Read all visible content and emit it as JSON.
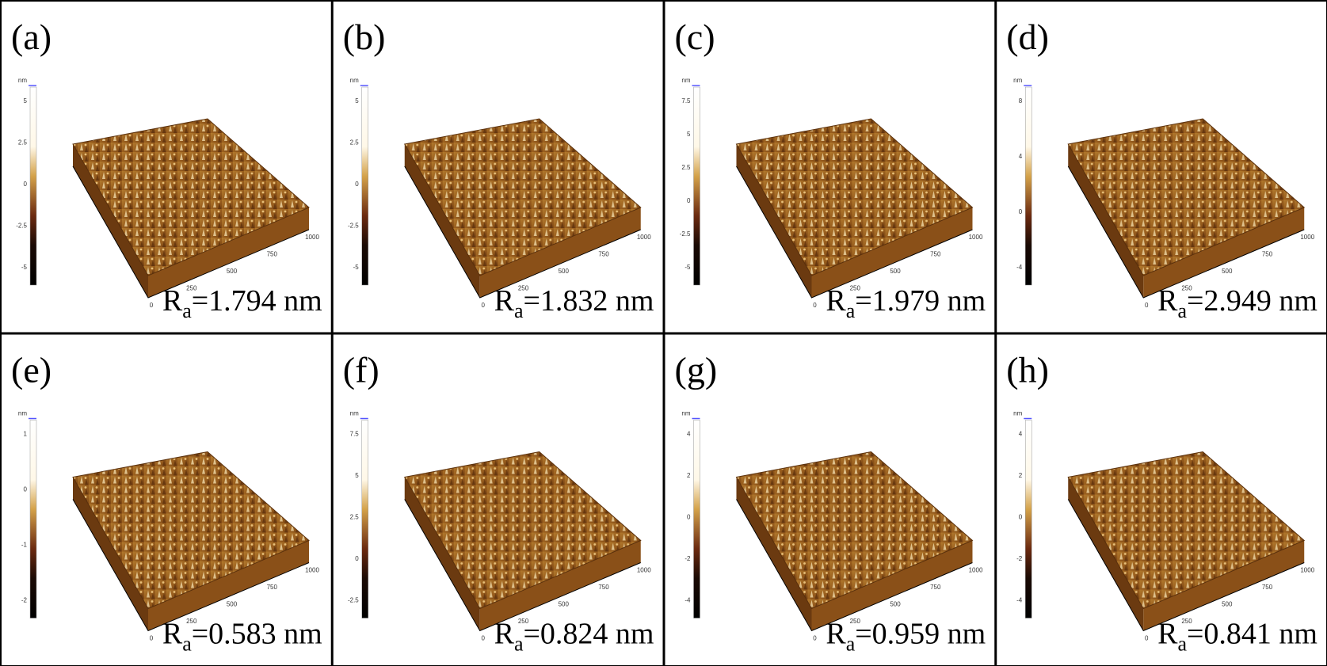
{
  "panels": [
    {
      "label": "(a)",
      "ra": {
        "symbol": "R",
        "sub": "a",
        "text": "=1.794 nm"
      },
      "colorbar": {
        "unit": "nm",
        "ticks": [
          "5",
          "2.5",
          "0",
          "-2.5",
          "-5"
        ]
      },
      "axis_ticks": [
        "0",
        "250",
        "500",
        "750",
        "1000"
      ]
    },
    {
      "label": "(b)",
      "ra": {
        "symbol": "R",
        "sub": "a",
        "text": "=1.832 nm"
      },
      "colorbar": {
        "unit": "nm",
        "ticks": [
          "5",
          "2.5",
          "0",
          "-2.5",
          "-5"
        ]
      },
      "axis_ticks": [
        "0",
        "250",
        "500",
        "750",
        "1000"
      ]
    },
    {
      "label": "(c)",
      "ra": {
        "symbol": "R",
        "sub": "a",
        "text": "=1.979 nm"
      },
      "colorbar": {
        "unit": "nm",
        "ticks": [
          "7.5",
          "5",
          "2.5",
          "0",
          "-2.5",
          "-5"
        ]
      },
      "axis_ticks": [
        "0",
        "250",
        "500",
        "750",
        "1000"
      ]
    },
    {
      "label": "(d)",
      "ra": {
        "symbol": "R",
        "sub": "a",
        "text": "=2.949 nm"
      },
      "colorbar": {
        "unit": "nm",
        "ticks": [
          "8",
          "4",
          "0",
          "-4"
        ]
      },
      "axis_ticks": [
        "0",
        "250",
        "500",
        "750",
        "1000"
      ]
    },
    {
      "label": "(e)",
      "ra": {
        "symbol": "R",
        "sub": "a",
        "text": "=0.583 nm"
      },
      "colorbar": {
        "unit": "nm",
        "ticks": [
          "1",
          "0",
          "-1",
          "-2"
        ]
      },
      "axis_ticks": [
        "0",
        "250",
        "500",
        "750",
        "1000"
      ]
    },
    {
      "label": "(f)",
      "ra": {
        "symbol": "R",
        "sub": "a",
        "text": "=0.824 nm"
      },
      "colorbar": {
        "unit": "nm",
        "ticks": [
          "7.5",
          "5",
          "2.5",
          "0",
          "-2.5"
        ]
      },
      "axis_ticks": [
        "0",
        "250",
        "500",
        "750",
        "1000"
      ]
    },
    {
      "label": "(g)",
      "ra": {
        "symbol": "R",
        "sub": "a",
        "text": "=0.959 nm"
      },
      "colorbar": {
        "unit": "nm",
        "ticks": [
          "4",
          "2",
          "0",
          "-2",
          "-4"
        ]
      },
      "axis_ticks": [
        "0",
        "250",
        "500",
        "750",
        "1000"
      ]
    },
    {
      "label": "(h)",
      "ra": {
        "symbol": "R",
        "sub": "a",
        "text": "=0.841 nm"
      },
      "colorbar": {
        "unit": "nm",
        "ticks": [
          "4",
          "2",
          "0",
          "-2",
          "-4"
        ]
      },
      "axis_ticks": [
        "0",
        "250",
        "500",
        "750",
        "1000"
      ]
    }
  ]
}
